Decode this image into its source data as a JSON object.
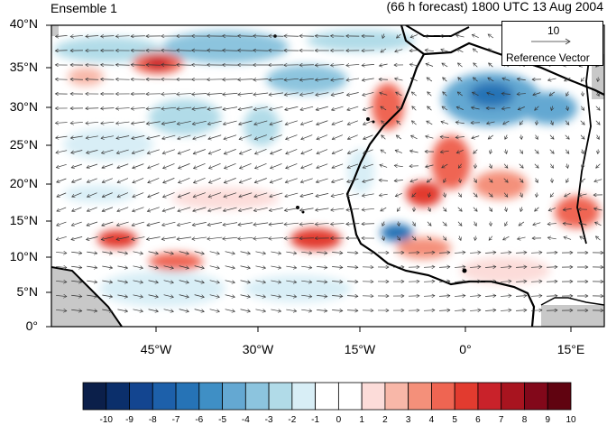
{
  "header": {
    "left_title": "Ensemble 1",
    "right_title": "(66 h forecast) 1800 UTC 13 Aug 2004"
  },
  "map": {
    "lat_labels": [
      "40°N",
      "35°N",
      "30°N",
      "25°N",
      "20°N",
      "15°N",
      "10°N",
      "5°N",
      "0°"
    ],
    "lon_labels": [
      "45°W",
      "30°W",
      "15°W",
      "0°",
      "15°E"
    ],
    "reference_vector": {
      "magnitude": "10",
      "label": "Reference Vector"
    },
    "colors": {
      "land_missing": "#c8c8c8",
      "coast": "#000000"
    }
  },
  "colorbar": {
    "labels": [
      "-10",
      "-9",
      "-8",
      "-7",
      "-6",
      "-5",
      "-4",
      "-3",
      "-2",
      "-1",
      "0",
      "1",
      "2",
      "3",
      "4",
      "5",
      "6",
      "7",
      "8",
      "9",
      "10"
    ],
    "colors": [
      "#0b1f4a",
      "#0b2f6b",
      "#134590",
      "#1d60aa",
      "#2673b6",
      "#3f8fc5",
      "#64a8d2",
      "#8cc4de",
      "#b1dbe8",
      "#d8eef6",
      "#ffffff",
      "#ffffff",
      "#fcdcd9",
      "#f8b7a8",
      "#f4907a",
      "#ef6552",
      "#e23b2f",
      "#c9222a",
      "#a8141f",
      "#82081a",
      "#600310"
    ]
  }
}
